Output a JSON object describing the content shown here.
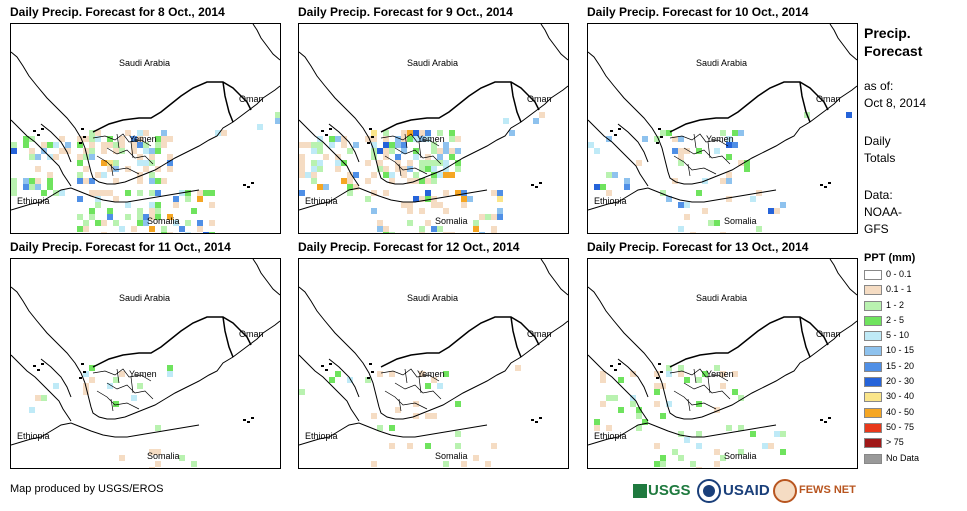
{
  "panels": [
    {
      "title": "Daily Precip. Forecast for 8 Oct., 2014"
    },
    {
      "title": "Daily Precip. Forecast for 9 Oct., 2014"
    },
    {
      "title": "Daily Precip. Forecast for 10 Oct., 2014"
    },
    {
      "title": "Daily Precip. Forecast for 11 Oct., 2014"
    },
    {
      "title": "Daily Precip. Forecast for 12 Oct., 2014"
    },
    {
      "title": "Daily Precip. Forecast for 13 Oct., 2014"
    }
  ],
  "map_labels": {
    "saudi": "Saudi Arabia",
    "oman": "Oman",
    "yemen": "Yemen",
    "ethiopia": "Ethiopia",
    "somalia": "Somalia"
  },
  "sidebar": {
    "title_line1": "Precip.",
    "title_line2": "Forecast",
    "asof_line1": "as of:",
    "asof_line2": "Oct 8, 2014",
    "totals_line1": "Daily",
    "totals_line2": "Totals",
    "data_line1": "Data:",
    "data_line2": "NOAA-",
    "data_line3": "GFS"
  },
  "legend": {
    "title": "PPT (mm)",
    "items": [
      {
        "label": "0 - 0.1",
        "color": "#ffffff"
      },
      {
        "label": "0.1 - 1",
        "color": "#f5dcc3"
      },
      {
        "label": "1 - 2",
        "color": "#b9f2b0"
      },
      {
        "label": "2 - 5",
        "color": "#6fe35e"
      },
      {
        "label": "5 - 10",
        "color": "#bfeaf7"
      },
      {
        "label": "10 - 15",
        "color": "#8ec2ee"
      },
      {
        "label": "15 - 20",
        "color": "#4f8fe6"
      },
      {
        "label": "20 - 30",
        "color": "#2563d9"
      },
      {
        "label": "30 - 40",
        "color": "#fae58a"
      },
      {
        "label": "40 - 50",
        "color": "#f5a623"
      },
      {
        "label": "50 - 75",
        "color": "#e8381a"
      },
      {
        "label": "> 75",
        "color": "#a01818"
      },
      {
        "label": "No Data",
        "color": "#999999"
      }
    ]
  },
  "footer": {
    "credit": "Map produced by USGS/EROS"
  },
  "logos": {
    "usgs": "USGS",
    "usaid": "USAID",
    "fews": "FEWS NET"
  }
}
